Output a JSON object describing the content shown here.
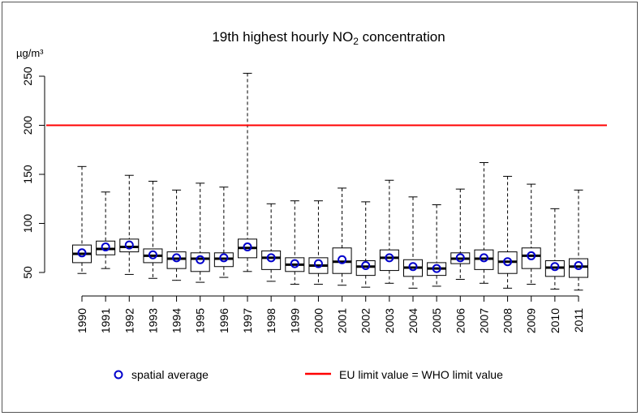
{
  "chart_data": {
    "type": "boxplot",
    "title": {
      "main": "19th highest hourly NO",
      "sub": "2",
      "suffix": " concentration"
    },
    "ylabel": "µg/m³",
    "xlabel": "",
    "ylim": [
      30,
      265
    ],
    "yticks": [
      50,
      100,
      150,
      200,
      250
    ],
    "grid": false,
    "legend_placement": "bottom",
    "colors": {
      "box": "#000000",
      "median": "#000000",
      "average_marker": "#0000cc",
      "limit_line": "#ff0000"
    },
    "categories": [
      "1990",
      "1991",
      "1992",
      "1993",
      "1994",
      "1995",
      "1996",
      "1997",
      "1998",
      "1999",
      "2000",
      "2001",
      "2002",
      "2003",
      "2004",
      "2005",
      "2006",
      "2007",
      "2008",
      "2009",
      "2010",
      "2011"
    ],
    "boxes": [
      {
        "min": 49,
        "q1": 60,
        "median": 69,
        "q3": 78,
        "max": 158,
        "mean": 70
      },
      {
        "min": 54,
        "q1": 68,
        "median": 74,
        "q3": 82,
        "max": 132,
        "mean": 76
      },
      {
        "min": 48,
        "q1": 71,
        "median": 76,
        "q3": 84,
        "max": 149,
        "mean": 78
      },
      {
        "min": 44,
        "q1": 60,
        "median": 67,
        "q3": 74,
        "max": 143,
        "mean": 68
      },
      {
        "min": 42,
        "q1": 54,
        "median": 64,
        "q3": 71,
        "max": 134,
        "mean": 65
      },
      {
        "min": 40,
        "q1": 51,
        "median": 64,
        "q3": 70,
        "max": 141,
        "mean": 63
      },
      {
        "min": 45,
        "q1": 56,
        "median": 64,
        "q3": 70,
        "max": 137,
        "mean": 65
      },
      {
        "min": 51,
        "q1": 65,
        "median": 75,
        "q3": 84,
        "max": 253,
        "mean": 76
      },
      {
        "min": 41,
        "q1": 53,
        "median": 65,
        "q3": 72,
        "max": 120,
        "mean": 65
      },
      {
        "min": 38,
        "q1": 51,
        "median": 58,
        "q3": 65,
        "max": 123,
        "mean": 59
      },
      {
        "min": 38,
        "q1": 49,
        "median": 57,
        "q3": 65,
        "max": 123,
        "mean": 59
      },
      {
        "min": 37,
        "q1": 49,
        "median": 61,
        "q3": 75,
        "max": 136,
        "mean": 63
      },
      {
        "min": 35,
        "q1": 47,
        "median": 56,
        "q3": 62,
        "max": 122,
        "mean": 57
      },
      {
        "min": 39,
        "q1": 52,
        "median": 65,
        "q3": 73,
        "max": 144,
        "mean": 65
      },
      {
        "min": 34,
        "q1": 46,
        "median": 55,
        "q3": 63,
        "max": 127,
        "mean": 56
      },
      {
        "min": 36,
        "q1": 47,
        "median": 54,
        "q3": 60,
        "max": 119,
        "mean": 54
      },
      {
        "min": 43,
        "q1": 59,
        "median": 64,
        "q3": 70,
        "max": 135,
        "mean": 65
      },
      {
        "min": 39,
        "q1": 53,
        "median": 64,
        "q3": 73,
        "max": 162,
        "mean": 65
      },
      {
        "min": 34,
        "q1": 49,
        "median": 61,
        "q3": 71,
        "max": 148,
        "mean": 61
      },
      {
        "min": 38,
        "q1": 54,
        "median": 67,
        "q3": 75,
        "max": 140,
        "mean": 67
      },
      {
        "min": 33,
        "q1": 46,
        "median": 55,
        "q3": 62,
        "max": 115,
        "mean": 56
      },
      {
        "min": 32,
        "q1": 45,
        "median": 56,
        "q3": 64,
        "max": 134,
        "mean": 57
      }
    ],
    "reference_lines": [
      {
        "name": "EU limit value = WHO limit value",
        "value": 200
      }
    ],
    "legend": [
      {
        "label": "spatial average",
        "symbol": "circle"
      },
      {
        "label": "EU limit value = WHO limit value",
        "symbol": "line"
      }
    ]
  }
}
